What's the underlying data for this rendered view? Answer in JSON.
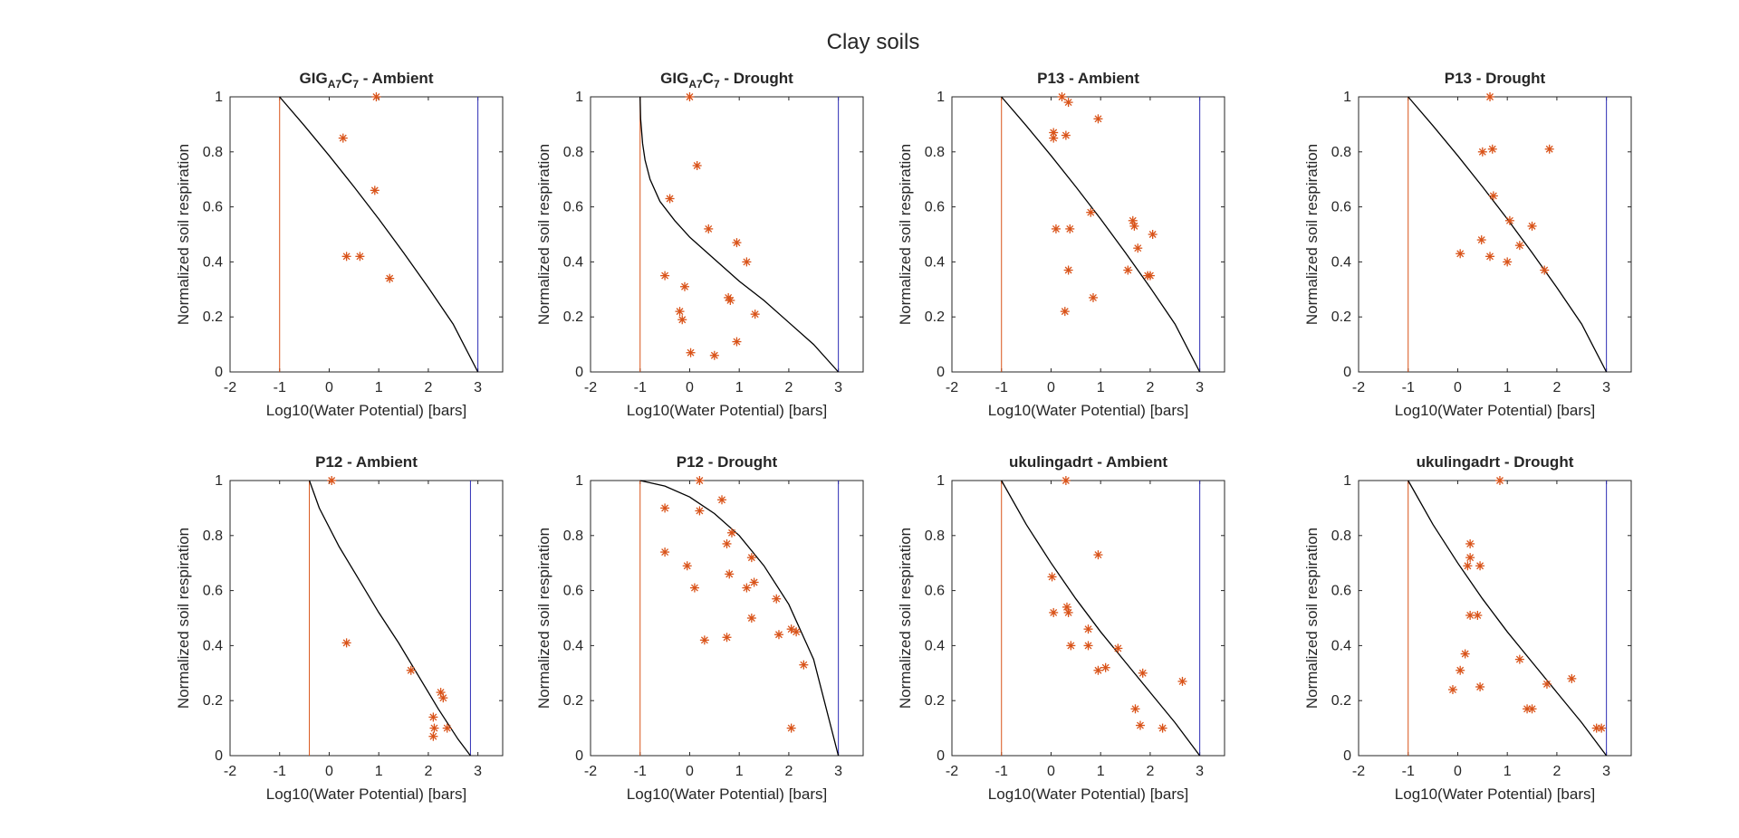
{
  "figure_title": "Clay soils",
  "colors": {
    "axis": "#262626",
    "curve": "#000000",
    "red_line": "#d95319",
    "blue_line": "#2c2cb4",
    "marker": "#d95319"
  },
  "chart_data": [
    {
      "type": "scatter",
      "title": "GIG_A7C_7 - Ambient",
      "title_parts": [
        "GIG",
        "A7",
        "C",
        "7",
        " - Ambient"
      ],
      "xlabel": "Log10(Water Potential) [bars]",
      "ylabel": "Normalized soil respiration",
      "xlim": [
        -2,
        3.5
      ],
      "ylim": [
        0,
        1
      ],
      "xticks": [
        "-2",
        "-1",
        "0",
        "1",
        "2",
        "3"
      ],
      "yticks": [
        "0",
        "0.2",
        "0.4",
        "0.6",
        "0.8",
        "1"
      ],
      "vlines": {
        "red": -1,
        "blue": 3
      },
      "curve": [
        [
          -1,
          1
        ],
        [
          -0.5,
          0.895
        ],
        [
          0,
          0.786
        ],
        [
          0.5,
          0.673
        ],
        [
          1,
          0.556
        ],
        [
          1.5,
          0.434
        ],
        [
          2,
          0.307
        ],
        [
          2.5,
          0.174
        ],
        [
          3,
          0
        ]
      ],
      "points": [
        [
          0.95,
          1.0
        ],
        [
          0.28,
          0.85
        ],
        [
          0.92,
          0.66
        ],
        [
          0.35,
          0.42
        ],
        [
          0.62,
          0.42
        ],
        [
          1.22,
          0.34
        ]
      ]
    },
    {
      "type": "scatter",
      "title": "GIG_A7C_7 - Drought",
      "title_parts": [
        "GIG",
        "A7",
        "C",
        "7",
        " - Drought"
      ],
      "xlabel": "Log10(Water Potential) [bars]",
      "ylabel": "Normalized soil respiration",
      "xlim": [
        -2,
        3.5
      ],
      "ylim": [
        0,
        1
      ],
      "xticks": [
        "-2",
        "-1",
        "0",
        "1",
        "2",
        "3"
      ],
      "yticks": [
        "0",
        "0.2",
        "0.4",
        "0.6",
        "0.8",
        "1"
      ],
      "vlines": {
        "red": -1,
        "blue": 3
      },
      "curve": [
        [
          -1,
          1
        ],
        [
          -0.99,
          0.92
        ],
        [
          -0.95,
          0.83
        ],
        [
          -0.9,
          0.77
        ],
        [
          -0.8,
          0.7
        ],
        [
          -0.6,
          0.62
        ],
        [
          -0.3,
          0.55
        ],
        [
          0,
          0.49
        ],
        [
          0.5,
          0.41
        ],
        [
          1,
          0.33
        ],
        [
          1.5,
          0.26
        ],
        [
          2,
          0.18
        ],
        [
          2.5,
          0.1
        ],
        [
          3,
          0
        ]
      ],
      "points": [
        [
          0.0,
          1.0
        ],
        [
          0.15,
          0.75
        ],
        [
          -0.4,
          0.63
        ],
        [
          0.38,
          0.52
        ],
        [
          -0.5,
          0.35
        ],
        [
          -0.1,
          0.31
        ],
        [
          -0.2,
          0.22
        ],
        [
          -0.15,
          0.19
        ],
        [
          0.95,
          0.47
        ],
        [
          1.15,
          0.4
        ],
        [
          0.78,
          0.27
        ],
        [
          0.82,
          0.26
        ],
        [
          1.32,
          0.21
        ],
        [
          0.02,
          0.07
        ],
        [
          0.5,
          0.06
        ],
        [
          0.95,
          0.11
        ]
      ]
    },
    {
      "type": "scatter",
      "title": "P13 - Ambient",
      "xlabel": "Log10(Water Potential) [bars]",
      "ylabel": "Normalized soil respiration",
      "xlim": [
        -2,
        3.5
      ],
      "ylim": [
        0,
        1
      ],
      "xticks": [
        "-2",
        "-1",
        "0",
        "1",
        "2",
        "3"
      ],
      "yticks": [
        "0",
        "0.2",
        "0.4",
        "0.6",
        "0.8",
        "1"
      ],
      "vlines": {
        "red": -1,
        "blue": 3
      },
      "curve": [
        [
          -1,
          1
        ],
        [
          -0.5,
          0.895
        ],
        [
          0,
          0.786
        ],
        [
          0.5,
          0.673
        ],
        [
          1,
          0.556
        ],
        [
          1.5,
          0.434
        ],
        [
          2,
          0.307
        ],
        [
          2.5,
          0.174
        ],
        [
          3,
          0
        ]
      ],
      "points": [
        [
          0.22,
          1.0
        ],
        [
          0.35,
          0.98
        ],
        [
          0.95,
          0.92
        ],
        [
          0.05,
          0.87
        ],
        [
          0.05,
          0.85
        ],
        [
          0.3,
          0.86
        ],
        [
          0.8,
          0.58
        ],
        [
          0.1,
          0.52
        ],
        [
          0.38,
          0.52
        ],
        [
          1.65,
          0.55
        ],
        [
          1.68,
          0.53
        ],
        [
          1.75,
          0.45
        ],
        [
          2.05,
          0.5
        ],
        [
          1.55,
          0.37
        ],
        [
          1.95,
          0.35
        ],
        [
          2.0,
          0.35
        ],
        [
          0.35,
          0.37
        ],
        [
          0.85,
          0.27
        ],
        [
          0.28,
          0.22
        ]
      ]
    },
    {
      "type": "scatter",
      "title": "P13 - Drought",
      "xlabel": "Log10(Water Potential) [bars]",
      "ylabel": "Normalized soil respiration",
      "xlim": [
        -2,
        3.5
      ],
      "ylim": [
        0,
        1
      ],
      "xticks": [
        "-2",
        "-1",
        "0",
        "1",
        "2",
        "3"
      ],
      "yticks": [
        "0",
        "0.2",
        "0.4",
        "0.6",
        "0.8",
        "1"
      ],
      "vlines": {
        "red": -1,
        "blue": 3
      },
      "curve": [
        [
          -1,
          1
        ],
        [
          -0.5,
          0.895
        ],
        [
          0,
          0.786
        ],
        [
          0.5,
          0.673
        ],
        [
          1,
          0.556
        ],
        [
          1.5,
          0.434
        ],
        [
          2,
          0.307
        ],
        [
          2.5,
          0.174
        ],
        [
          3,
          0
        ]
      ],
      "points": [
        [
          0.65,
          1.0
        ],
        [
          0.5,
          0.8
        ],
        [
          0.7,
          0.81
        ],
        [
          1.85,
          0.81
        ],
        [
          0.72,
          0.64
        ],
        [
          1.05,
          0.55
        ],
        [
          1.5,
          0.53
        ],
        [
          0.48,
          0.48
        ],
        [
          1.25,
          0.46
        ],
        [
          0.05,
          0.43
        ],
        [
          0.65,
          0.42
        ],
        [
          1.0,
          0.4
        ],
        [
          1.75,
          0.37
        ]
      ]
    },
    {
      "type": "scatter",
      "title": "P12 - Ambient",
      "xlabel": "Log10(Water Potential) [bars]",
      "ylabel": "Normalized soil respiration",
      "xlim": [
        -2,
        3.5
      ],
      "ylim": [
        0,
        1
      ],
      "xticks": [
        "-2",
        "-1",
        "0",
        "1",
        "2",
        "3"
      ],
      "yticks": [
        "0",
        "0.2",
        "0.4",
        "0.6",
        "0.8",
        "1"
      ],
      "vlines": {
        "red": -0.4,
        "blue": 2.85
      },
      "curve": [
        [
          -0.4,
          1
        ],
        [
          -0.2,
          0.9
        ],
        [
          0.2,
          0.76
        ],
        [
          0.6,
          0.64
        ],
        [
          1.0,
          0.52
        ],
        [
          1.4,
          0.41
        ],
        [
          1.8,
          0.29
        ],
        [
          2.2,
          0.17
        ],
        [
          2.6,
          0.06
        ],
        [
          2.85,
          0
        ]
      ],
      "points": [
        [
          0.05,
          1.0
        ],
        [
          0.35,
          0.41
        ],
        [
          1.65,
          0.31
        ],
        [
          2.25,
          0.23
        ],
        [
          2.3,
          0.21
        ],
        [
          2.1,
          0.14
        ],
        [
          2.12,
          0.1
        ],
        [
          2.38,
          0.1
        ],
        [
          2.1,
          0.07
        ]
      ]
    },
    {
      "type": "scatter",
      "title": "P12 - Drought",
      "xlabel": "Log10(Water Potential) [bars]",
      "ylabel": "Normalized soil respiration",
      "xlim": [
        -2,
        3.5
      ],
      "ylim": [
        0,
        1
      ],
      "xticks": [
        "-2",
        "-1",
        "0",
        "1",
        "2",
        "3"
      ],
      "yticks": [
        "0",
        "0.2",
        "0.4",
        "0.6",
        "0.8",
        "1"
      ],
      "vlines": {
        "red": -1,
        "blue": 3
      },
      "curve": [
        [
          -1,
          1
        ],
        [
          -0.5,
          0.98
        ],
        [
          0,
          0.94
        ],
        [
          0.5,
          0.88
        ],
        [
          1,
          0.8
        ],
        [
          1.5,
          0.69
        ],
        [
          2,
          0.55
        ],
        [
          2.5,
          0.35
        ],
        [
          3,
          0
        ]
      ],
      "points": [
        [
          0.2,
          1.0
        ],
        [
          -0.5,
          0.9
        ],
        [
          0.2,
          0.89
        ],
        [
          0.65,
          0.93
        ],
        [
          0.85,
          0.81
        ],
        [
          0.75,
          0.77
        ],
        [
          -0.5,
          0.74
        ],
        [
          -0.05,
          0.69
        ],
        [
          1.25,
          0.72
        ],
        [
          0.8,
          0.66
        ],
        [
          0.1,
          0.61
        ],
        [
          1.3,
          0.63
        ],
        [
          1.15,
          0.61
        ],
        [
          1.75,
          0.57
        ],
        [
          1.25,
          0.5
        ],
        [
          2.05,
          0.46
        ],
        [
          2.15,
          0.45
        ],
        [
          1.8,
          0.44
        ],
        [
          0.75,
          0.43
        ],
        [
          0.3,
          0.42
        ],
        [
          2.3,
          0.33
        ],
        [
          2.05,
          0.1
        ]
      ]
    },
    {
      "type": "scatter",
      "title": "ukulingadrt - Ambient",
      "xlabel": "Log10(Water Potential) [bars]",
      "ylabel": "Normalized soil respiration",
      "xlim": [
        -2,
        3.5
      ],
      "ylim": [
        0,
        1
      ],
      "xticks": [
        "-2",
        "-1",
        "0",
        "1",
        "2",
        "3"
      ],
      "yticks": [
        "0",
        "0.2",
        "0.4",
        "0.6",
        "0.8",
        "1"
      ],
      "vlines": {
        "red": -1,
        "blue": 3
      },
      "curve": [
        [
          -1,
          1
        ],
        [
          -0.5,
          0.84
        ],
        [
          0,
          0.7
        ],
        [
          0.5,
          0.57
        ],
        [
          1,
          0.45
        ],
        [
          1.5,
          0.34
        ],
        [
          2,
          0.23
        ],
        [
          2.5,
          0.12
        ],
        [
          3,
          0
        ]
      ],
      "points": [
        [
          0.3,
          1.0
        ],
        [
          0.95,
          0.73
        ],
        [
          0.02,
          0.65
        ],
        [
          0.32,
          0.54
        ],
        [
          0.35,
          0.52
        ],
        [
          0.05,
          0.52
        ],
        [
          0.75,
          0.46
        ],
        [
          0.75,
          0.4
        ],
        [
          0.4,
          0.4
        ],
        [
          1.35,
          0.39
        ],
        [
          1.1,
          0.32
        ],
        [
          0.95,
          0.31
        ],
        [
          1.85,
          0.3
        ],
        [
          2.65,
          0.27
        ],
        [
          1.7,
          0.17
        ],
        [
          1.8,
          0.11
        ],
        [
          2.25,
          0.1
        ]
      ]
    },
    {
      "type": "scatter",
      "title": "ukulingadrt - Drought",
      "xlabel": "Log10(Water Potential) [bars]",
      "ylabel": "Normalized soil respiration",
      "xlim": [
        -2,
        3.5
      ],
      "ylim": [
        0,
        1
      ],
      "xticks": [
        "-2",
        "-1",
        "0",
        "1",
        "2",
        "3"
      ],
      "yticks": [
        "0",
        "0.2",
        "0.4",
        "0.6",
        "0.8",
        "1"
      ],
      "vlines": {
        "red": -1,
        "blue": 3
      },
      "curve": [
        [
          -1,
          1
        ],
        [
          -0.5,
          0.84
        ],
        [
          0,
          0.7
        ],
        [
          0.5,
          0.57
        ],
        [
          1,
          0.45
        ],
        [
          1.5,
          0.34
        ],
        [
          2,
          0.23
        ],
        [
          2.5,
          0.12
        ],
        [
          3,
          0
        ]
      ],
      "points": [
        [
          0.85,
          1.0
        ],
        [
          0.25,
          0.77
        ],
        [
          0.25,
          0.72
        ],
        [
          0.2,
          0.69
        ],
        [
          0.45,
          0.69
        ],
        [
          0.25,
          0.51
        ],
        [
          0.4,
          0.51
        ],
        [
          0.15,
          0.37
        ],
        [
          0.05,
          0.31
        ],
        [
          -0.1,
          0.24
        ],
        [
          0.45,
          0.25
        ],
        [
          1.25,
          0.35
        ],
        [
          2.3,
          0.28
        ],
        [
          1.8,
          0.26
        ],
        [
          1.4,
          0.17
        ],
        [
          1.5,
          0.17
        ],
        [
          2.8,
          0.1
        ],
        [
          2.9,
          0.1
        ]
      ]
    }
  ]
}
